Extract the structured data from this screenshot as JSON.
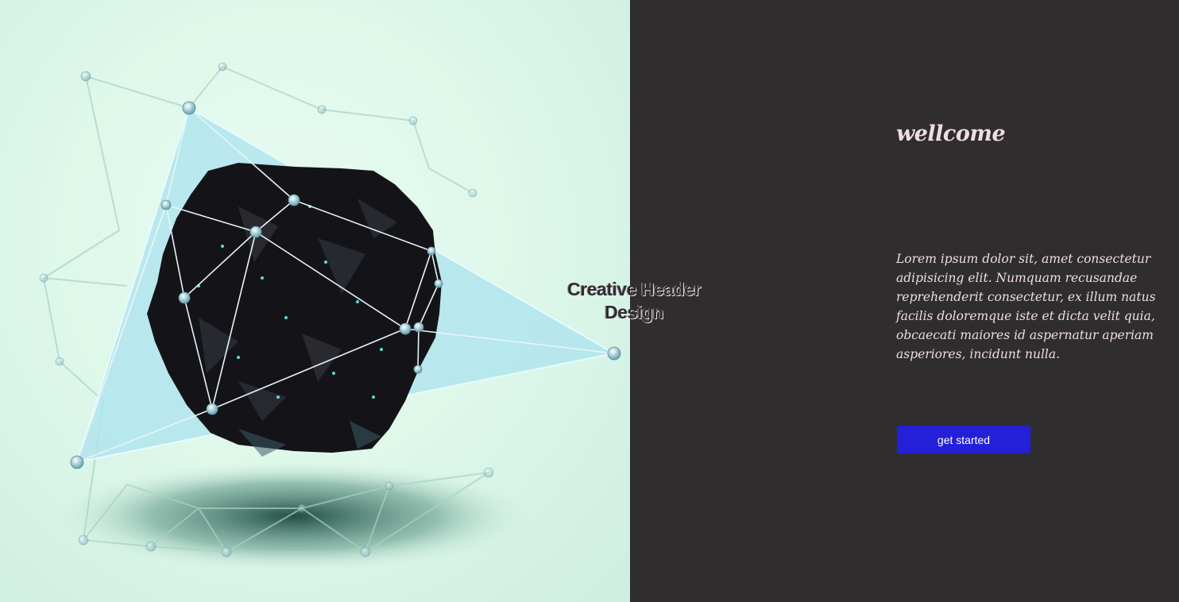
{
  "hero": {
    "title": "Creative Header Design"
  },
  "welcome": {
    "heading": "wellcome"
  },
  "intro": {
    "text": "Lorem ipsum dolor sit, amet consectetur adipisicing elit. Numquam recusandae reprehenderit consectetur, ex illum natus facilis doloremque iste et dicta velit quia, obcaecati maiores id aspernatur aperiam asperiores, incidunt nulla."
  },
  "cta": {
    "label": "get started"
  },
  "colors": {
    "left_background": "#def8ea",
    "right_background": "#2f2d2e",
    "button": "#2320d8",
    "text": "#f0dce4",
    "mesh_fill": "#aee3ee"
  },
  "image": {
    "subject": "3d-polygon-network-illustration"
  }
}
